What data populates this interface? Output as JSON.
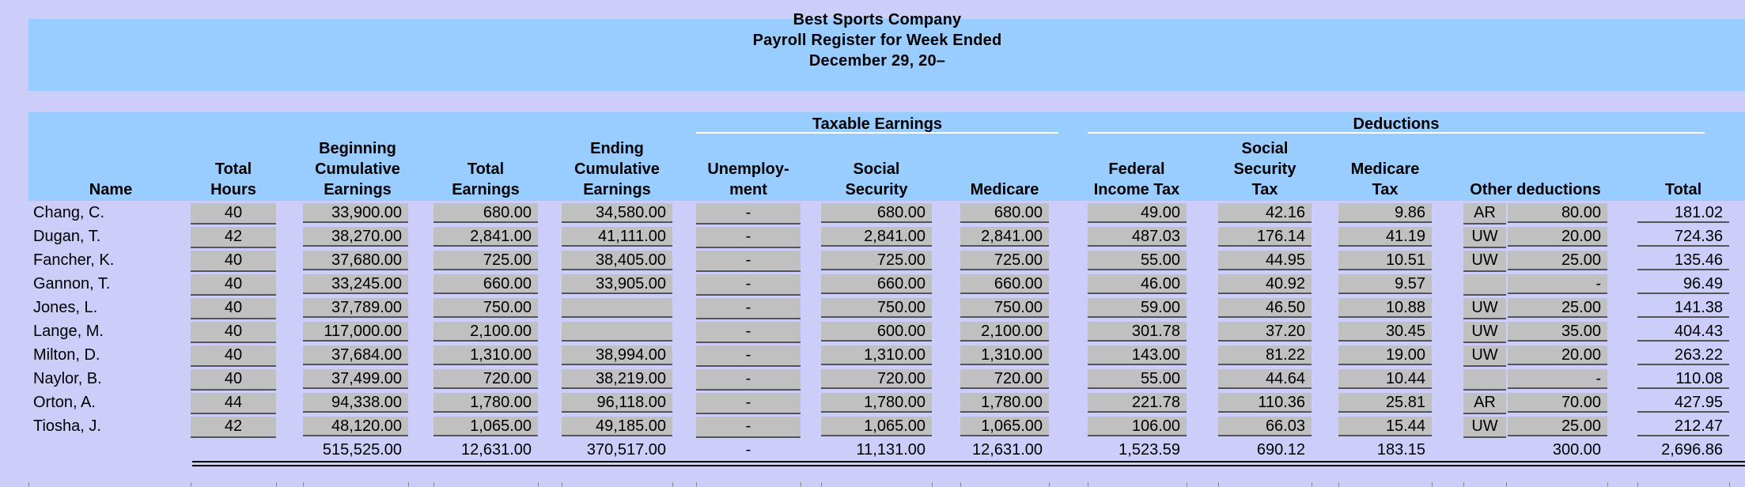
{
  "title": {
    "company": "Best Sports Company",
    "line2": "Payroll Register for Week Ended",
    "line3": "December 29, 20–"
  },
  "groups": {
    "taxable": "Taxable Earnings",
    "deductions": "Deductions"
  },
  "headers": {
    "name": "Name",
    "total_hours": [
      "Total",
      "Hours"
    ],
    "beg_cum": [
      "Beginning",
      "Cumulative",
      "Earnings"
    ],
    "total_earnings": [
      "Total",
      "Earnings"
    ],
    "end_cum": [
      "Ending",
      "Cumulative",
      "Earnings"
    ],
    "unemployment": [
      "Unemploy-",
      "ment"
    ],
    "social_security": [
      "Social",
      "Security"
    ],
    "medicare": "Medicare",
    "federal": [
      "Federal",
      "Income Tax"
    ],
    "ss_tax": [
      "Social",
      "Security",
      "Tax"
    ],
    "medicare_tax": [
      "Medicare",
      "Tax"
    ],
    "other": "Other deductions",
    "total": "Total"
  },
  "rows": [
    {
      "name": "Chang, C.",
      "hours": "40",
      "beg": "33,900.00",
      "earn": "680.00",
      "end": "34,580.00",
      "unemp": "-",
      "ss": "680.00",
      "med": "680.00",
      "fed": "49.00",
      "sstax": "42.16",
      "medtax": "9.86",
      "code": "AR",
      "other": "80.00",
      "total": "181.02"
    },
    {
      "name": "Dugan, T.",
      "hours": "42",
      "beg": "38,270.00",
      "earn": "2,841.00",
      "end": "41,111.00",
      "unemp": "-",
      "ss": "2,841.00",
      "med": "2,841.00",
      "fed": "487.03",
      "sstax": "176.14",
      "medtax": "41.19",
      "code": "UW",
      "other": "20.00",
      "total": "724.36"
    },
    {
      "name": "Fancher, K.",
      "hours": "40",
      "beg": "37,680.00",
      "earn": "725.00",
      "end": "38,405.00",
      "unemp": "-",
      "ss": "725.00",
      "med": "725.00",
      "fed": "55.00",
      "sstax": "44.95",
      "medtax": "10.51",
      "code": "UW",
      "other": "25.00",
      "total": "135.46"
    },
    {
      "name": "Gannon, T.",
      "hours": "40",
      "beg": "33,245.00",
      "earn": "660.00",
      "end": "33,905.00",
      "unemp": "-",
      "ss": "660.00",
      "med": "660.00",
      "fed": "46.00",
      "sstax": "40.92",
      "medtax": "9.57",
      "code": "",
      "other": "-",
      "total": "96.49"
    },
    {
      "name": "Jones, L.",
      "hours": "40",
      "beg": "37,789.00",
      "earn": "750.00",
      "end": "",
      "unemp": "-",
      "ss": "750.00",
      "med": "750.00",
      "fed": "59.00",
      "sstax": "46.50",
      "medtax": "10.88",
      "code": "UW",
      "other": "25.00",
      "total": "141.38"
    },
    {
      "name": "Lange, M.",
      "hours": "40",
      "beg": "117,000.00",
      "earn": "2,100.00",
      "end": "",
      "unemp": "-",
      "ss": "600.00",
      "med": "2,100.00",
      "fed": "301.78",
      "sstax": "37.20",
      "medtax": "30.45",
      "code": "UW",
      "other": "35.00",
      "total": "404.43"
    },
    {
      "name": "Milton, D.",
      "hours": "40",
      "beg": "37,684.00",
      "earn": "1,310.00",
      "end": "38,994.00",
      "unemp": "-",
      "ss": "1,310.00",
      "med": "1,310.00",
      "fed": "143.00",
      "sstax": "81.22",
      "medtax": "19.00",
      "code": "UW",
      "other": "20.00",
      "total": "263.22"
    },
    {
      "name": "Naylor, B.",
      "hours": "40",
      "beg": "37,499.00",
      "earn": "720.00",
      "end": "38,219.00",
      "unemp": "-",
      "ss": "720.00",
      "med": "720.00",
      "fed": "55.00",
      "sstax": "44.64",
      "medtax": "10.44",
      "code": "",
      "other": "-",
      "total": "110.08"
    },
    {
      "name": "Orton, A.",
      "hours": "44",
      "beg": "94,338.00",
      "earn": "1,780.00",
      "end": "96,118.00",
      "unemp": "-",
      "ss": "1,780.00",
      "med": "1,780.00",
      "fed": "221.78",
      "sstax": "110.36",
      "medtax": "25.81",
      "code": "AR",
      "other": "70.00",
      "total": "427.95"
    },
    {
      "name": "Tiosha, J.",
      "hours": "42",
      "beg": "48,120.00",
      "earn": "1,065.00",
      "end": "49,185.00",
      "unemp": "-",
      "ss": "1,065.00",
      "med": "1,065.00",
      "fed": "106.00",
      "sstax": "66.03",
      "medtax": "15.44",
      "code": "UW",
      "other": "25.00",
      "total": "212.47"
    }
  ],
  "totals": {
    "beg": "515,525.00",
    "earn": "12,631.00",
    "end": "370,517.00",
    "unemp": "-",
    "ss": "11,131.00",
    "med": "12,631.00",
    "fed": "1,523.59",
    "sstax": "690.12",
    "medtax": "183.15",
    "other": "300.00",
    "total": "2,696.86"
  },
  "colors": {
    "page_bg": "#cccdf9",
    "band_bg": "#99ccff",
    "cell_bg": "#c0c0c0"
  }
}
